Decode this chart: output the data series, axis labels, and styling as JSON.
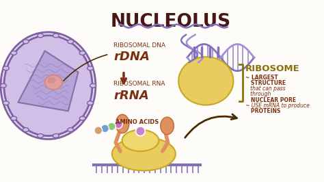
{
  "title": "NUCLEOLUS",
  "title_color": "#4a1515",
  "bg_color": "#fefcf8",
  "label_rdna": "RIBOSOMAL DNA",
  "label_rdna_bold": "rDNA",
  "label_rrna": "RIBOSOMAL RNA",
  "label_rrna_bold": "rRNA",
  "label_amino": "AMINO ACIDS",
  "label_ribosome": "RIBOSOME",
  "ribosome_line1": "~ LARGEST",
  "ribosome_line2": "   STRUCTURE",
  "ribosome_line3": "   that can pass",
  "ribosome_line4": "   through",
  "ribosome_line5": "   NUCLEAR PORE",
  "ribosome_line6": "~ USE mRNA to produce",
  "ribosome_line7": "   PROTEINS",
  "cell_color": "#d0c0e8",
  "cell_inner": "#c0afe0",
  "cell_outline": "#8060a0",
  "nucleus_color": "#b0a0d8",
  "nucleus_fill": "#c8b8e8",
  "nucleolus_color": "#e0a0a0",
  "nucleolus_inner": "#d08888",
  "dna_color1": "#8070c0",
  "dna_color2": "#a090d8",
  "ribosome_color": "#e8cc60",
  "ribosome_edge": "#c8a820",
  "arm_color": "#e09060",
  "amino_colors": [
    "#d070c0",
    "#90c870",
    "#70a0d0",
    "#d0a070"
  ],
  "amino_attach": "#c880d0",
  "arrow_color": "#4a2a00",
  "text_color": "#7a3010",
  "text_color2": "#8a7010",
  "mrna_color": "#8070b8",
  "dot_color": "#9070b8"
}
